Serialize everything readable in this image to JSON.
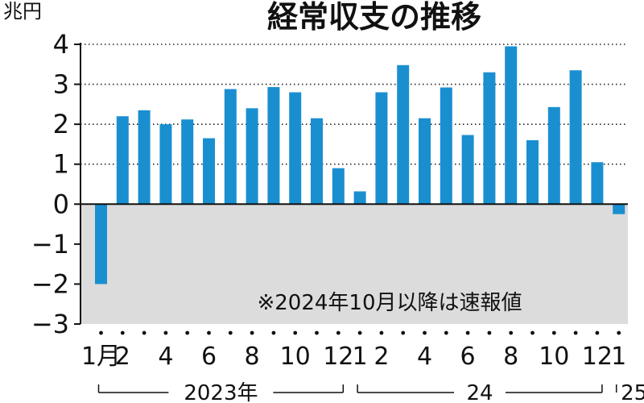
{
  "chart_data": {
    "type": "bar",
    "title": "経常収支の推移",
    "ylabel": "兆円",
    "ylim": [
      -3,
      4
    ],
    "yticks": [
      "4",
      "3",
      "2",
      "1",
      "0",
      "−1",
      "−2",
      "−3"
    ],
    "categories": [
      "2023-01",
      "2023-02",
      "2023-03",
      "2023-04",
      "2023-05",
      "2023-06",
      "2023-07",
      "2023-08",
      "2023-09",
      "2023-10",
      "2023-11",
      "2023-12",
      "2024-01",
      "2024-02",
      "2024-03",
      "2024-04",
      "2024-05",
      "2024-06",
      "2024-07",
      "2024-08",
      "2024-09",
      "2024-10",
      "2024-11",
      "2024-12",
      "2025-01"
    ],
    "values": [
      -2.0,
      2.2,
      2.35,
      2.0,
      2.12,
      1.65,
      2.88,
      2.4,
      2.93,
      2.8,
      2.15,
      0.9,
      0.32,
      2.8,
      3.48,
      2.15,
      2.92,
      1.73,
      3.3,
      3.95,
      1.6,
      2.43,
      3.35,
      1.05,
      -0.25
    ],
    "x_tick_labels": [
      {
        "index": 0,
        "text": "1月"
      },
      {
        "index": 1,
        "text": "2"
      },
      {
        "index": 3,
        "text": "4"
      },
      {
        "index": 5,
        "text": "6"
      },
      {
        "index": 7,
        "text": "8"
      },
      {
        "index": 9,
        "text": "10"
      },
      {
        "index": 11,
        "text": "12"
      },
      {
        "index": 12,
        "text": "1"
      },
      {
        "index": 13,
        "text": "2"
      },
      {
        "index": 15,
        "text": "4"
      },
      {
        "index": 17,
        "text": "6"
      },
      {
        "index": 19,
        "text": "8"
      },
      {
        "index": 21,
        "text": "10"
      },
      {
        "index": 23,
        "text": "12"
      },
      {
        "index": 24,
        "text": "1"
      }
    ],
    "years": [
      {
        "label": "2023年",
        "start": 0,
        "end": 11
      },
      {
        "label": "24",
        "start": 12,
        "end": 23
      },
      {
        "label": "25",
        "start": 24,
        "end": 24
      }
    ],
    "note": "※2024年10月以降は速報値",
    "grid": "dotted-horizontal",
    "negative_region_shaded": true,
    "colors": {
      "bar": "#1a8fd0",
      "negative_bg": "#dcdcdc",
      "text": "#111111"
    }
  }
}
